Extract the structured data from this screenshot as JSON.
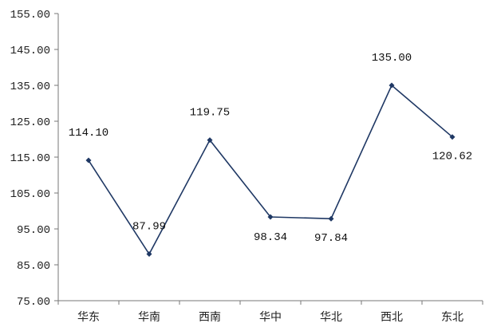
{
  "chart_data": {
    "type": "line",
    "categories": [
      "华东",
      "华南",
      "西南",
      "华中",
      "华北",
      "西北",
      "东北"
    ],
    "values": [
      114.1,
      87.99,
      119.75,
      98.34,
      97.84,
      135.0,
      120.62
    ],
    "data_labels": [
      "114.10",
      "87.99",
      "119.75",
      "98.34",
      "97.84",
      "135.00",
      "120.62"
    ],
    "yticks": [
      "75.00",
      "85.00",
      "95.00",
      "105.00",
      "115.00",
      "125.00",
      "135.00",
      "145.00",
      "155.00"
    ],
    "ylim": [
      75,
      155
    ],
    "ytick_step": 10,
    "grid": false,
    "legend": "none",
    "line_color": "#1f3864",
    "marker": "diamond"
  }
}
